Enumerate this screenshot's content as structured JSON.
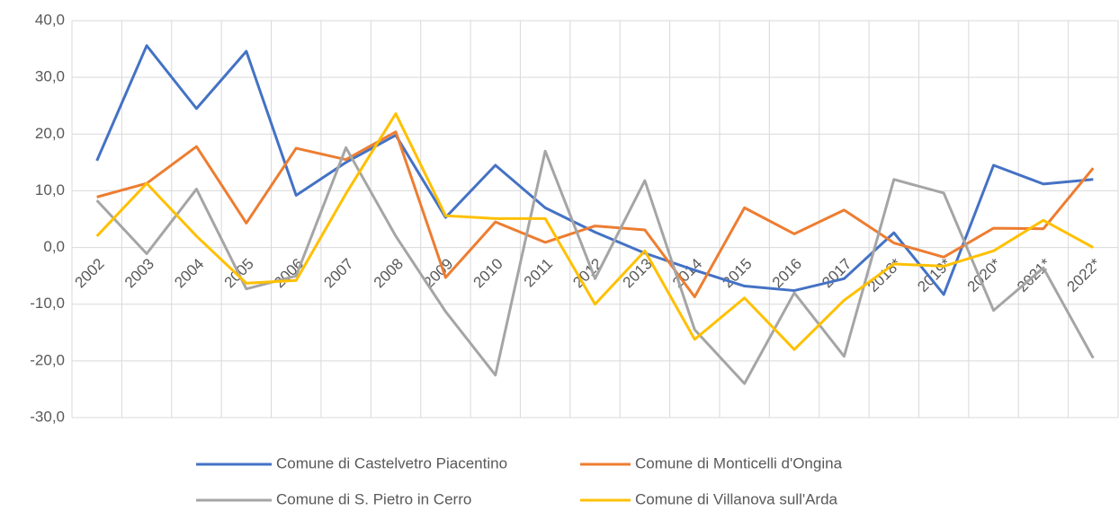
{
  "chart_data": {
    "type": "line",
    "categories": [
      "2002",
      "2003",
      "2004",
      "2005",
      "2006",
      "2007",
      "2008",
      "2009",
      "2010",
      "2011",
      "2012",
      "2013",
      "2014",
      "2015",
      "2016",
      "2017",
      "2018*",
      "2019*",
      "2020*",
      "2021*",
      "2022*"
    ],
    "series": [
      {
        "name": "Comune di Castelvetro Piacentino",
        "color": "#4472c4",
        "values": [
          15.3,
          35.6,
          24.5,
          34.6,
          9.2,
          15,
          19.8,
          5.3,
          14.5,
          7,
          2.7,
          -1,
          -4,
          -6.8,
          -7.6,
          -5.5,
          2.6,
          -8.3,
          14.5,
          11.2,
          12
        ]
      },
      {
        "name": "Comune di Monticelli d'Ongina",
        "color": "#ed7d31",
        "values": [
          8.9,
          11.3,
          17.8,
          4.3,
          17.5,
          15.5,
          20.4,
          -5.3,
          4.5,
          0.9,
          3.8,
          3.1,
          -8.7,
          7,
          2.4,
          6.6,
          0.8,
          -1.7,
          3.4,
          3.3,
          14
        ]
      },
      {
        "name": "Comune di S. Pietro in Cerro",
        "color": "#a5a5a5",
        "values": [
          8.3,
          -1.1,
          10.3,
          -7.3,
          -5,
          17.6,
          2,
          -11.3,
          -22.5,
          17,
          -5.5,
          11.8,
          -14.5,
          -24,
          -8,
          -19.2,
          12,
          9.6,
          -11.1,
          -3.6,
          -19.5
        ]
      },
      {
        "name": "Comune di Villanova sull'Arda",
        "color": "#ffc000",
        "values": [
          2,
          11.3,
          2,
          -6.3,
          -5.8,
          9.5,
          23.6,
          5.6,
          5.1,
          5.1,
          -10,
          -0.6,
          -16.2,
          -8.9,
          -18,
          -9.3,
          -2.9,
          -3.3,
          -0.6,
          4.8,
          0
        ]
      }
    ],
    "ylim": [
      -30,
      40
    ],
    "yticks": [
      {
        "value": -30,
        "label": "-30,0"
      },
      {
        "value": -20,
        "label": "-20,0"
      },
      {
        "value": -10,
        "label": "-10,0"
      },
      {
        "value": 0,
        "label": "0,0"
      },
      {
        "value": 10,
        "label": "10,0"
      },
      {
        "value": 20,
        "label": "20,0"
      },
      {
        "value": 30,
        "label": "30,0"
      },
      {
        "value": 40,
        "label": "40,0"
      }
    ],
    "grid": true,
    "legend": "bottom"
  }
}
